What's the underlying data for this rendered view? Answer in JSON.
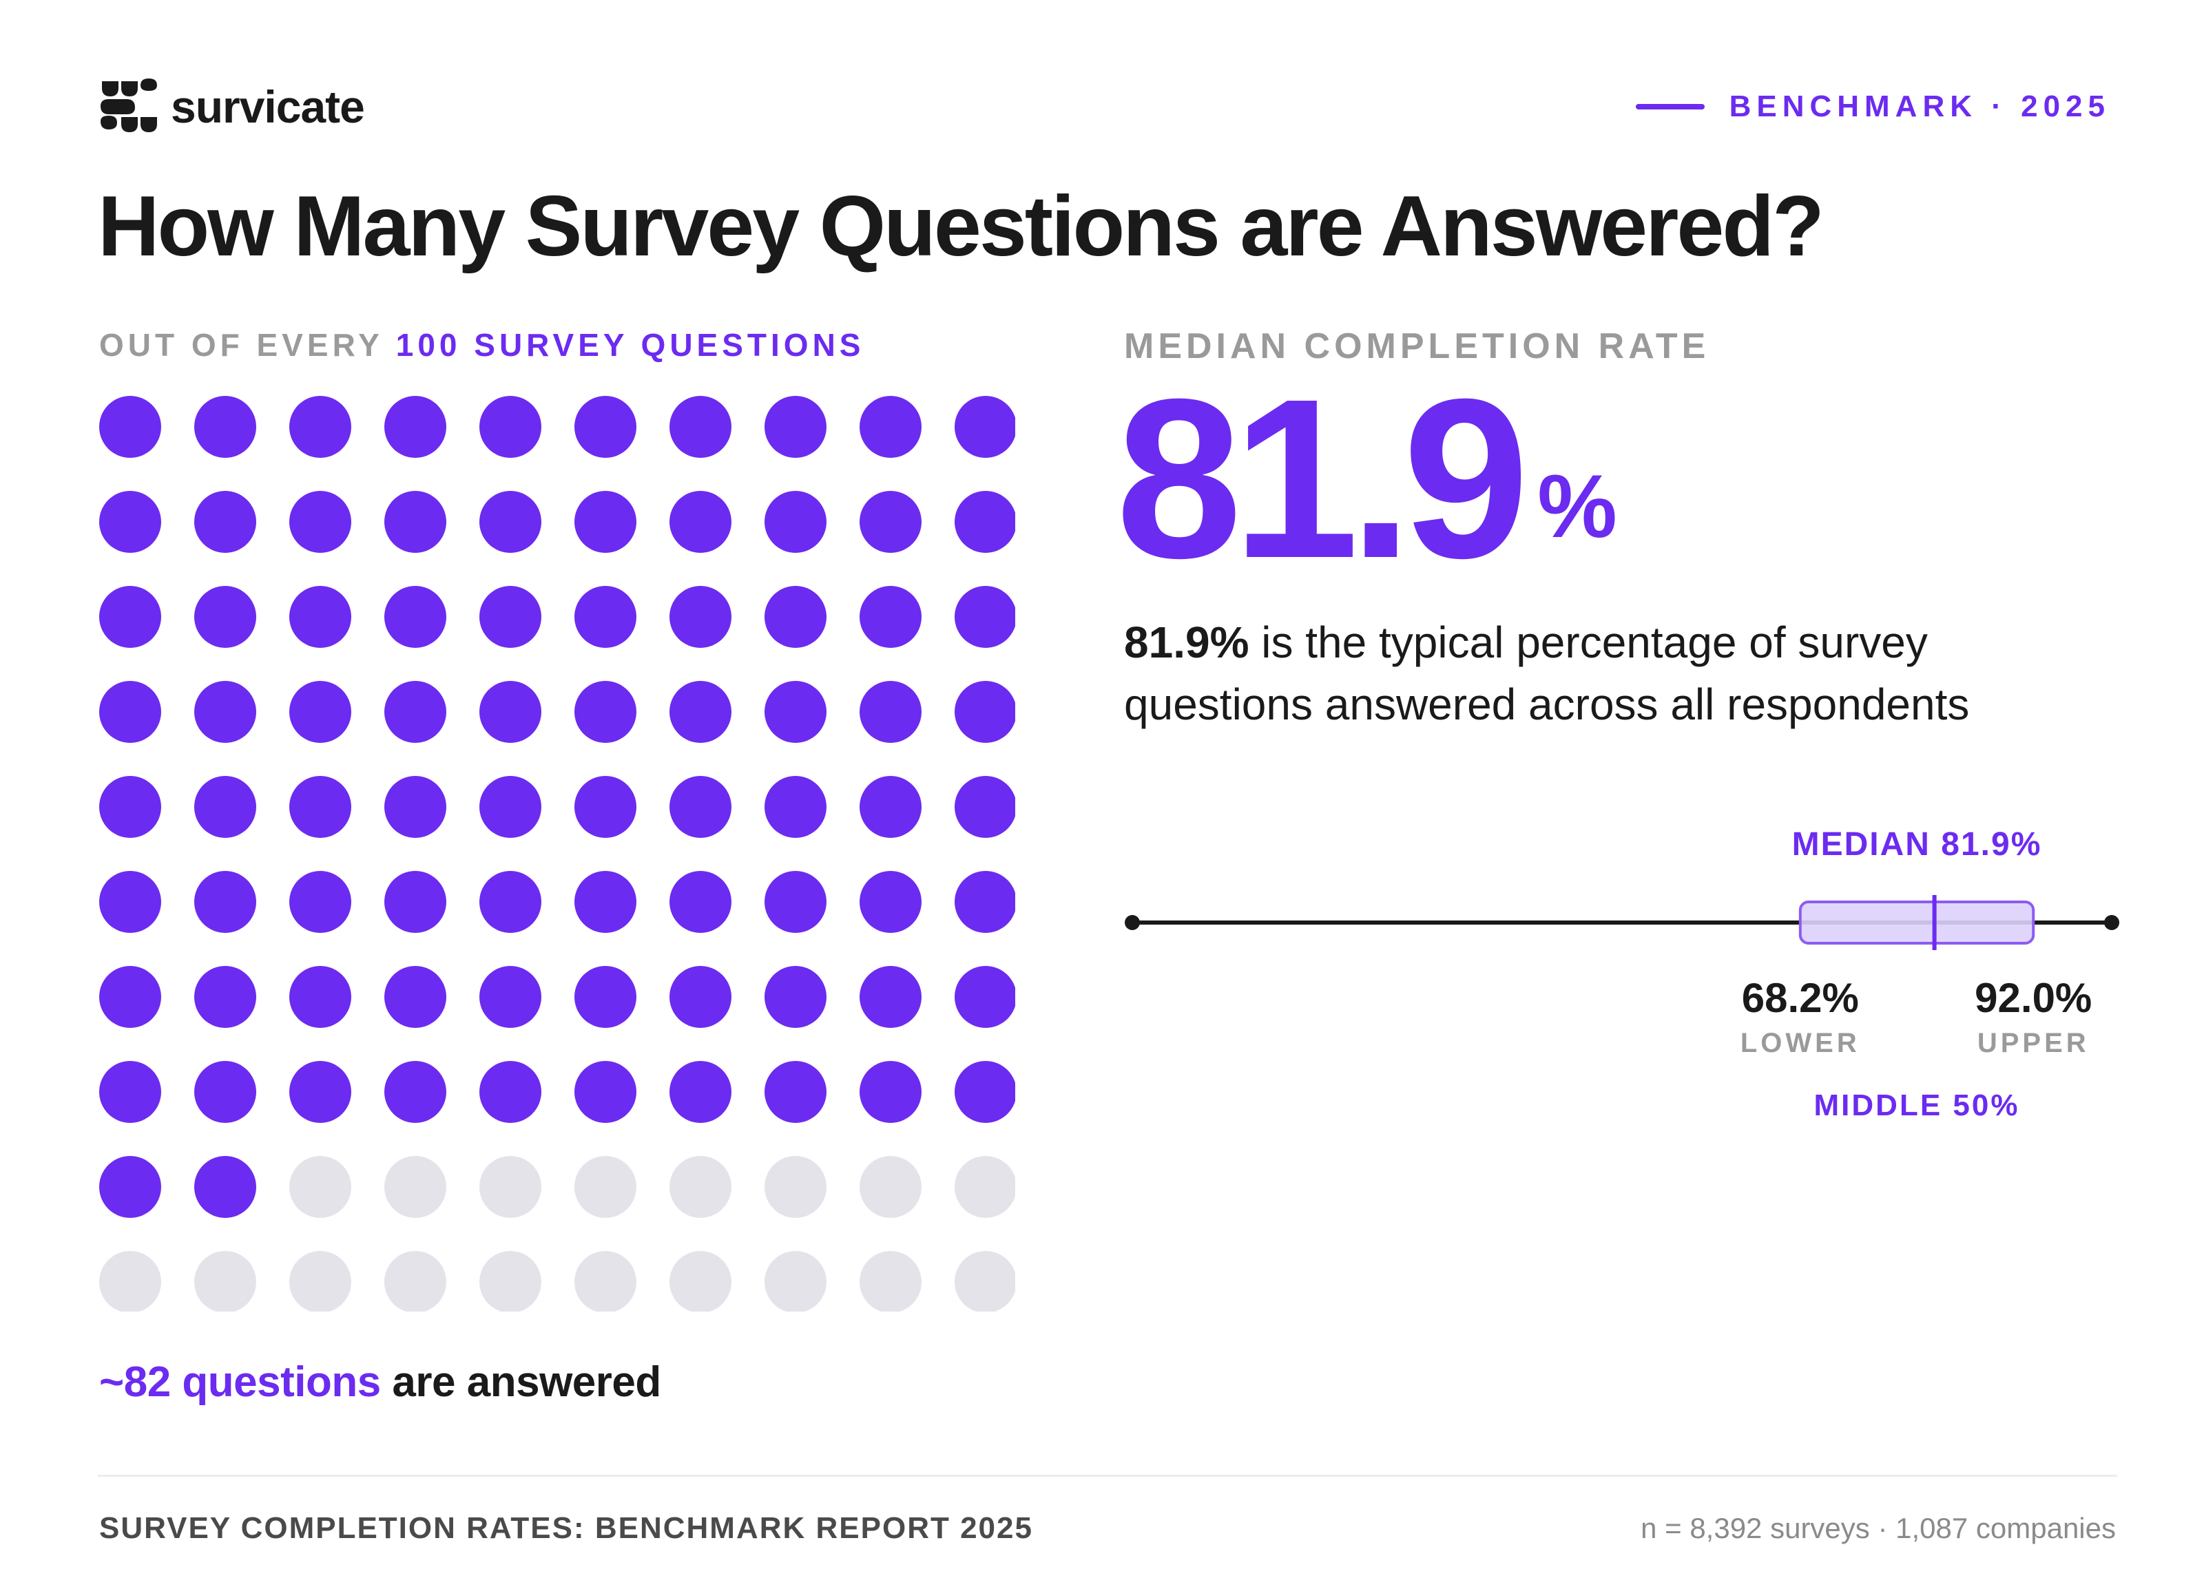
{
  "brand": {
    "name": "survicate",
    "accent_color": "#6c2bf0",
    "muted_dot_color": "#e4e3ea",
    "logo_icon": "survicate-logo-icon"
  },
  "header": {
    "tag": "BENCHMARK · 2025",
    "title": "How Many Survey Questions are Answered?"
  },
  "left": {
    "label_prefix": "OUT OF EVERY ",
    "label_accent": "100 SURVEY QUESTIONS",
    "result_accent": "~82 questions",
    "result_rest": " are answered"
  },
  "right": {
    "label": "MEDIAN COMPLETION RATE",
    "big_value": "81.9",
    "big_unit": "%",
    "desc_bold": "81.9%",
    "desc_rest": " is the typical percentage of survey questions answered across all respondents"
  },
  "boxplot": {
    "median_label": "MEDIAN 81.9%",
    "lower_value": "68.2%",
    "lower_label": "LOWER",
    "upper_value": "92.0%",
    "upper_label": "UPPER",
    "range_label": "MIDDLE 50%"
  },
  "footer": {
    "report": "SURVEY COMPLETION RATES: BENCHMARK REPORT 2025",
    "sample": "n = 8,392 surveys · 1,087 companies"
  },
  "chart_data": [
    {
      "type": "waffle",
      "title": "OUT OF EVERY 100 SURVEY QUESTIONS",
      "total": 100,
      "filled": 82,
      "columns": 10,
      "rows": 10
    },
    {
      "type": "boxplot",
      "median": 81.9,
      "q1": 68.2,
      "q3": 92.0,
      "min": 0,
      "max": 100,
      "unit": "%"
    }
  ]
}
